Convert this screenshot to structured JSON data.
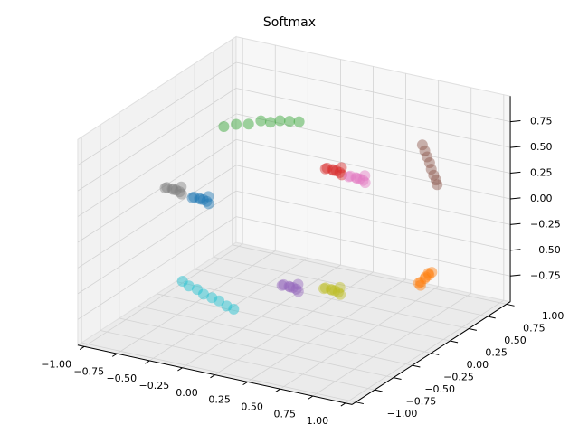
{
  "chart_data": {
    "type": "scatter3d",
    "title": "Softmax",
    "xlim": [
      -1.05,
      1.05
    ],
    "ylim": [
      -1.05,
      1.05
    ],
    "zlim": [
      -1.0,
      1.0
    ],
    "grid": true,
    "xticks": [
      {
        "value": -1,
        "label": "−1.00"
      },
      {
        "value": -0.75,
        "label": "−0.75"
      },
      {
        "value": -0.5,
        "label": "−0.50"
      },
      {
        "value": -0.25,
        "label": "−0.25"
      },
      {
        "value": 0,
        "label": "0.00"
      },
      {
        "value": 0.25,
        "label": "0.25"
      },
      {
        "value": 0.5,
        "label": "0.50"
      },
      {
        "value": 0.75,
        "label": "0.75"
      },
      {
        "value": 1,
        "label": "1.00"
      }
    ],
    "yticks": [
      {
        "value": -1,
        "label": "−1.00"
      },
      {
        "value": -0.75,
        "label": "−0.75"
      },
      {
        "value": -0.5,
        "label": "−0.50"
      },
      {
        "value": -0.25,
        "label": "−0.25"
      },
      {
        "value": 0,
        "label": "0.00"
      },
      {
        "value": 0.25,
        "label": "0.25"
      },
      {
        "value": 0.5,
        "label": "0.50"
      },
      {
        "value": 0.75,
        "label": "0.75"
      },
      {
        "value": 1,
        "label": "1.00"
      }
    ],
    "zticks": [
      {
        "value": -0.75,
        "label": "−0.75"
      },
      {
        "value": -0.5,
        "label": "−0.50"
      },
      {
        "value": -0.25,
        "label": "−0.25"
      },
      {
        "value": 0,
        "label": "0.00"
      },
      {
        "value": 0.25,
        "label": "0.25"
      },
      {
        "value": 0.5,
        "label": "0.50"
      },
      {
        "value": 0.75,
        "label": "0.75"
      }
    ],
    "series": [
      {
        "color": "#7f7f7f",
        "x": [
          -0.55,
          -0.51,
          -0.58,
          -0.5,
          -0.6,
          -0.53,
          -0.57,
          -0.48
        ],
        "y": [
          -0.65,
          -0.68,
          -0.61,
          -0.63,
          -0.67,
          -0.6,
          -0.7,
          -0.66
        ],
        "z": [
          0.46,
          0.48,
          0.44,
          0.49,
          0.47,
          0.42,
          0.5,
          0.44
        ]
      },
      {
        "color": "#1f77b4",
        "x": [
          -0.4,
          -0.36,
          -0.43,
          -0.35,
          -0.45,
          -0.38,
          -0.42,
          -0.33
        ],
        "y": [
          -0.55,
          -0.58,
          -0.51,
          -0.53,
          -0.57,
          -0.5,
          -0.6,
          -0.56
        ],
        "z": [
          0.36,
          0.38,
          0.34,
          0.39,
          0.37,
          0.32,
          0.4,
          0.34
        ]
      },
      {
        "color": "#2ca02c",
        "x": [
          -0.78,
          -0.72,
          -0.66,
          -0.6,
          -0.55,
          -0.5,
          -0.45,
          -0.4
        ],
        "y": [
          0.42,
          0.48,
          0.54,
          0.6,
          0.64,
          0.68,
          0.72,
          0.76
        ],
        "z": [
          0.5,
          0.51,
          0.5,
          0.52,
          0.5,
          0.51,
          0.5,
          0.49
        ]
      },
      {
        "color": "#d62728",
        "x": [
          0.1,
          0.14,
          0.07,
          0.15,
          0.05,
          0.12,
          0.08,
          0.17
        ],
        "y": [
          0.35,
          0.32,
          0.39,
          0.37,
          0.33,
          0.4,
          0.3,
          0.34
        ],
        "z": [
          0.35,
          0.37,
          0.33,
          0.38,
          0.36,
          0.31,
          0.39,
          0.33
        ]
      },
      {
        "color": "#e377c2",
        "x": [
          0.25,
          0.29,
          0.22,
          0.3,
          0.2,
          0.27,
          0.23,
          0.32
        ],
        "y": [
          0.4,
          0.37,
          0.44,
          0.42,
          0.38,
          0.45,
          0.35,
          0.39
        ],
        "z": [
          0.29,
          0.31,
          0.27,
          0.32,
          0.3,
          0.25,
          0.33,
          0.27
        ]
      },
      {
        "color": "#8c564b",
        "x": [
          0.55,
          0.58,
          0.61,
          0.64,
          0.67,
          0.7,
          0.73,
          0.75
        ],
        "y": [
          0.75,
          0.73,
          0.71,
          0.69,
          0.66,
          0.64,
          0.62,
          0.6
        ],
        "z": [
          0.53,
          0.49,
          0.45,
          0.41,
          0.37,
          0.33,
          0.3,
          0.27
        ]
      },
      {
        "color": "#ff7f0e",
        "x": [
          0.8,
          0.78,
          0.82,
          0.79,
          0.81,
          0.77,
          0.83,
          0.8
        ],
        "y": [
          0.35,
          0.33,
          0.37,
          0.31,
          0.38,
          0.32,
          0.39,
          0.36
        ],
        "z": [
          -0.51,
          -0.54,
          -0.48,
          -0.56,
          -0.47,
          -0.55,
          -0.46,
          -0.5
        ]
      },
      {
        "color": "#bcbd22",
        "x": [
          0.55,
          0.59,
          0.52,
          0.6,
          0.5,
          0.57,
          0.53,
          0.62
        ],
        "y": [
          -0.45,
          -0.48,
          -0.41,
          -0.43,
          -0.47,
          -0.4,
          -0.5,
          -0.46
        ],
        "z": [
          -0.31,
          -0.29,
          -0.33,
          -0.28,
          -0.3,
          -0.35,
          -0.27,
          -0.33
        ]
      },
      {
        "color": "#9467bd",
        "x": [
          0.2,
          0.24,
          0.17,
          0.25,
          0.15,
          0.22,
          0.18,
          0.27
        ],
        "y": [
          -0.4,
          -0.43,
          -0.36,
          -0.38,
          -0.42,
          -0.35,
          -0.45,
          -0.41
        ],
        "z": [
          -0.4,
          -0.38,
          -0.42,
          -0.37,
          -0.39,
          -0.44,
          -0.36,
          -0.42
        ]
      },
      {
        "color": "#17becf",
        "x": [
          -0.45,
          -0.39,
          -0.32,
          -0.26,
          -0.19,
          -0.13,
          -0.06,
          0.0
        ],
        "y": [
          -0.7,
          -0.72,
          -0.73,
          -0.75,
          -0.76,
          -0.77,
          -0.79,
          -0.8
        ],
        "z": [
          -0.38,
          -0.4,
          -0.41,
          -0.43,
          -0.44,
          -0.45,
          -0.47,
          -0.48
        ]
      }
    ]
  }
}
